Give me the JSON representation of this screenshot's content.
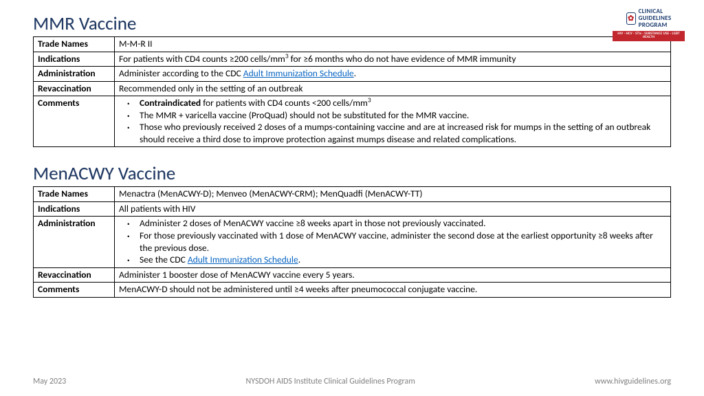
{
  "logo": {
    "line1": "CLINICAL",
    "line2": "GUIDELINES",
    "line3": "PROGRAM",
    "bar": "HIV · HCV · STIs · SUBSTANCE USE · LGBT HEALTH"
  },
  "section1": {
    "title": "MMR Vaccine",
    "rows": {
      "tradeNames": {
        "label": "Trade Names",
        "value": "M-M-R II"
      },
      "indications": {
        "label": "Indications",
        "prefix": "For patients with CD4 counts ≥200 cells/mm",
        "sup": "3",
        "suffix": " for ≥6 months who do not have evidence of MMR immunity"
      },
      "administration": {
        "label": "Administration",
        "before": "Administer according to the CDC ",
        "link": "Adult Immunization Schedule",
        "after": "."
      },
      "revaccination": {
        "label": "Revaccination",
        "value": "Recommended only in the setting of an outbreak"
      },
      "comments": {
        "label": "Comments",
        "bullets": [
          {
            "bold": "Contraindicated",
            "rest": " for patients with CD4 counts <200 cells/mm",
            "sup": "3"
          },
          {
            "text": "The MMR + varicella vaccine (ProQuad) should not be substituted for the MMR vaccine."
          },
          {
            "text": "Those who previously received 2 doses of a mumps-containing vaccine and are at increased risk for mumps in the setting of an outbreak should receive a third dose to improve protection against mumps disease and related complications."
          }
        ]
      }
    }
  },
  "section2": {
    "title": "MenACWY Vaccine",
    "rows": {
      "tradeNames": {
        "label": "Trade Names",
        "value": "Menactra (MenACWY-D); Menveo (MenACWY-CRM); MenQuadfi (MenACWY-TT)"
      },
      "indications": {
        "label": "Indications",
        "value": "All patients with HIV"
      },
      "administration": {
        "label": "Administration",
        "bullets": [
          {
            "text": "Administer 2 doses of MenACWY vaccine ≥8 weeks apart in those not previously vaccinated."
          },
          {
            "text": "For those previously vaccinated with 1 dose of MenACWY vaccine, administer the second dose at the earliest opportunity ≥8 weeks after the previous dose."
          },
          {
            "before": "See the CDC ",
            "link": "Adult Immunization Schedule",
            "after": "."
          }
        ]
      },
      "revaccination": {
        "label": "Revaccination",
        "value": "Administer 1 booster dose of MenACWY vaccine every 5 years."
      },
      "comments": {
        "label": "Comments",
        "value": "MenACWY-D should not be administered until ≥4 weeks after pneumococcal conjugate vaccine."
      }
    }
  },
  "footer": {
    "left": "May 2023",
    "center": "NYSDOH AIDS Institute Clinical Guidelines Program",
    "right": "www.hivguidelines.org"
  }
}
